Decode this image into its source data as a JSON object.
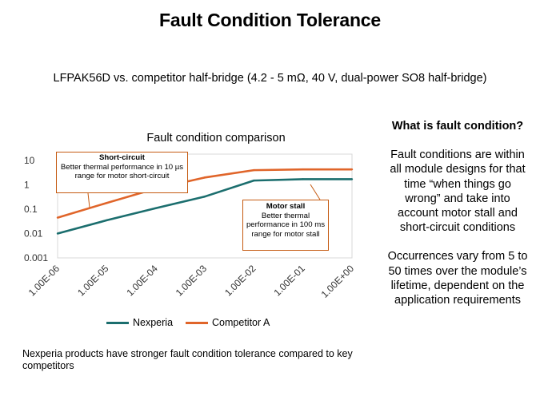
{
  "slide": {
    "title": "Fault Condition Tolerance",
    "subtitle": "LFPAK56D vs. competitor half-bridge (4.2 - 5 mΩ, 40 V, dual-power SO8 half-bridge)",
    "bottom_note": "Nexperia products have stronger fault condition tolerance compared to key competitors"
  },
  "sidebar": {
    "heading": "What is fault condition?",
    "paragraph1": "Fault conditions are within all module designs for that time “when things go wrong” and take into account motor stall and short-circuit conditions",
    "paragraph2": "Occurrences vary from 5 to 50 times over the module’s lifetime, dependent on the application requirements"
  },
  "callouts": {
    "short_circuit": {
      "title": "Short-circuit",
      "body": "Better thermal performance in 10 µs range for motor short-circuit"
    },
    "motor_stall": {
      "title": "Motor stall",
      "body": "Better thermal performance in 100 ms range for motor stall"
    }
  },
  "chart_data": {
    "type": "line",
    "title": "Fault condition comparison",
    "x_scale": "log",
    "y_scale": "log",
    "x": [
      1e-06,
      1e-05,
      0.0001,
      0.001,
      0.01,
      0.1,
      1
    ],
    "x_tick_labels": [
      "1.00E-06",
      "1.00E-05",
      "1.00E-04",
      "1.00E-03",
      "1.00E-02",
      "1.00E-01",
      "1.00E+00"
    ],
    "y_tick_labels": [
      "10",
      "1",
      "0.1",
      "0.01",
      "0.001"
    ],
    "ylim": [
      0.001,
      10
    ],
    "legend_position": "bottom",
    "grid": false,
    "series": [
      {
        "name": "Nexperia",
        "color": "#1b6e6e",
        "values": [
          0.01,
          0.035,
          0.11,
          0.33,
          1.5,
          1.7,
          1.7
        ]
      },
      {
        "name": "Competitor A",
        "color": "#e0652a",
        "values": [
          0.045,
          0.18,
          0.7,
          2.0,
          4.0,
          4.3,
          4.3
        ]
      }
    ]
  }
}
